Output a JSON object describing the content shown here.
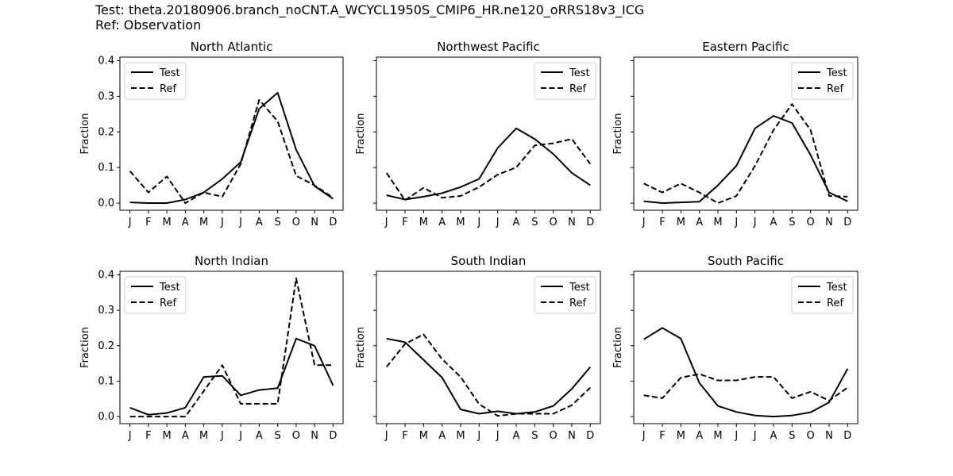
{
  "figure": {
    "test_title": "Test: theta.20180906.branch_noCNT.A_WCYCL1950S_CMIP6_HR.ne120_oRRS18v3_ICG",
    "ref_title": "Ref: Observation"
  },
  "chart_data": [
    {
      "type": "line",
      "title": "North Atlantic",
      "ylabel": "Fraction",
      "xlabel": "",
      "categories": [
        "J",
        "F",
        "M",
        "A",
        "M",
        "J",
        "J",
        "A",
        "S",
        "O",
        "N",
        "D"
      ],
      "ylim": [
        -0.02,
        0.41
      ],
      "yticks": [
        "0.0",
        "0.1",
        "0.2",
        "0.3",
        "0.4"
      ],
      "ytick_values": [
        0,
        0.1,
        0.2,
        0.3,
        0.4
      ],
      "show_ytick_labels": true,
      "legend": "top-left",
      "series": [
        {
          "name": "Test",
          "style": "solid",
          "values": [
            0.002,
            0.0,
            0.0,
            0.01,
            0.03,
            0.068,
            0.115,
            0.265,
            0.31,
            0.15,
            0.048,
            0.012
          ]
        },
        {
          "name": "Ref",
          "style": "dashed",
          "values": [
            0.09,
            0.03,
            0.075,
            0.0,
            0.03,
            0.018,
            0.11,
            0.29,
            0.23,
            0.077,
            0.05,
            0.015
          ]
        }
      ]
    },
    {
      "type": "line",
      "title": "Northwest Pacific",
      "ylabel": "Fraction",
      "xlabel": "",
      "categories": [
        "J",
        "F",
        "M",
        "A",
        "M",
        "J",
        "J",
        "A",
        "S",
        "O",
        "N",
        "D"
      ],
      "ylim": [
        -0.02,
        0.41
      ],
      "yticks": [
        "0.0",
        "0.1",
        "0.2",
        "0.3",
        "0.4"
      ],
      "ytick_values": [
        0,
        0.1,
        0.2,
        0.3,
        0.4
      ],
      "show_ytick_labels": false,
      "legend": "top-right",
      "series": [
        {
          "name": "Test",
          "style": "solid",
          "values": [
            0.022,
            0.01,
            0.018,
            0.028,
            0.045,
            0.068,
            0.155,
            0.21,
            0.18,
            0.138,
            0.085,
            0.05
          ]
        },
        {
          "name": "Ref",
          "style": "dashed",
          "values": [
            0.085,
            0.008,
            0.043,
            0.015,
            0.02,
            0.045,
            0.08,
            0.1,
            0.162,
            0.168,
            0.18,
            0.11
          ]
        }
      ]
    },
    {
      "type": "line",
      "title": "Eastern Pacific",
      "ylabel": "Fraction",
      "xlabel": "",
      "categories": [
        "J",
        "F",
        "M",
        "A",
        "M",
        "J",
        "J",
        "A",
        "S",
        "O",
        "N",
        "D"
      ],
      "ylim": [
        -0.02,
        0.41
      ],
      "yticks": [
        "0.0",
        "0.1",
        "0.2",
        "0.3",
        "0.4"
      ],
      "ytick_values": [
        0,
        0.1,
        0.2,
        0.3,
        0.4
      ],
      "show_ytick_labels": false,
      "legend": "top-right",
      "series": [
        {
          "name": "Test",
          "style": "solid",
          "values": [
            0.005,
            0.0,
            0.002,
            0.004,
            0.05,
            0.105,
            0.21,
            0.245,
            0.225,
            0.135,
            0.03,
            0.005
          ]
        },
        {
          "name": "Ref",
          "style": "dashed",
          "values": [
            0.055,
            0.03,
            0.055,
            0.03,
            0.0,
            0.02,
            0.105,
            0.205,
            0.278,
            0.205,
            0.02,
            0.018
          ]
        }
      ]
    },
    {
      "type": "line",
      "title": "North Indian",
      "ylabel": "Fraction",
      "xlabel": "",
      "categories": [
        "J",
        "F",
        "M",
        "A",
        "M",
        "J",
        "J",
        "A",
        "S",
        "O",
        "N",
        "D"
      ],
      "ylim": [
        -0.02,
        0.41
      ],
      "yticks": [
        "0.0",
        "0.1",
        "0.2",
        "0.3",
        "0.4"
      ],
      "ytick_values": [
        0,
        0.1,
        0.2,
        0.3,
        0.4
      ],
      "show_ytick_labels": true,
      "legend": "top-left",
      "series": [
        {
          "name": "Test",
          "style": "solid",
          "values": [
            0.025,
            0.005,
            0.01,
            0.025,
            0.112,
            0.115,
            0.06,
            0.075,
            0.08,
            0.22,
            0.2,
            0.088
          ]
        },
        {
          "name": "Ref",
          "style": "dashed",
          "values": [
            0.0,
            0.0,
            0.0,
            0.0,
            0.072,
            0.145,
            0.036,
            0.036,
            0.036,
            0.39,
            0.145,
            0.145
          ]
        }
      ]
    },
    {
      "type": "line",
      "title": "South Indian",
      "ylabel": "Fraction",
      "xlabel": "",
      "categories": [
        "J",
        "F",
        "M",
        "A",
        "M",
        "J",
        "J",
        "A",
        "S",
        "O",
        "N",
        "D"
      ],
      "ylim": [
        -0.02,
        0.41
      ],
      "yticks": [
        "0.0",
        "0.1",
        "0.2",
        "0.3",
        "0.4"
      ],
      "ytick_values": [
        0,
        0.1,
        0.2,
        0.3,
        0.4
      ],
      "show_ytick_labels": false,
      "legend": "top-right",
      "series": [
        {
          "name": "Test",
          "style": "solid",
          "values": [
            0.22,
            0.21,
            0.16,
            0.11,
            0.02,
            0.008,
            0.015,
            0.008,
            0.013,
            0.03,
            0.078,
            0.14
          ]
        },
        {
          "name": "Ref",
          "style": "dashed",
          "values": [
            0.14,
            0.205,
            0.232,
            0.162,
            0.112,
            0.035,
            0.002,
            0.008,
            0.008,
            0.008,
            0.032,
            0.082
          ]
        }
      ]
    },
    {
      "type": "line",
      "title": "South Pacific",
      "ylabel": "Fraction",
      "xlabel": "",
      "categories": [
        "J",
        "F",
        "M",
        "A",
        "M",
        "J",
        "J",
        "A",
        "S",
        "O",
        "N",
        "D"
      ],
      "ylim": [
        -0.02,
        0.41
      ],
      "yticks": [
        "0.0",
        "0.1",
        "0.2",
        "0.3",
        "0.4"
      ],
      "ytick_values": [
        0,
        0.1,
        0.2,
        0.3,
        0.4
      ],
      "show_ytick_labels": false,
      "legend": "top-right",
      "series": [
        {
          "name": "Test",
          "style": "solid",
          "values": [
            0.218,
            0.25,
            0.22,
            0.095,
            0.03,
            0.013,
            0.003,
            0.0,
            0.003,
            0.012,
            0.04,
            0.135
          ]
        },
        {
          "name": "Ref",
          "style": "dashed",
          "values": [
            0.06,
            0.052,
            0.11,
            0.12,
            0.102,
            0.102,
            0.112,
            0.112,
            0.052,
            0.07,
            0.045,
            0.082
          ]
        }
      ]
    }
  ]
}
